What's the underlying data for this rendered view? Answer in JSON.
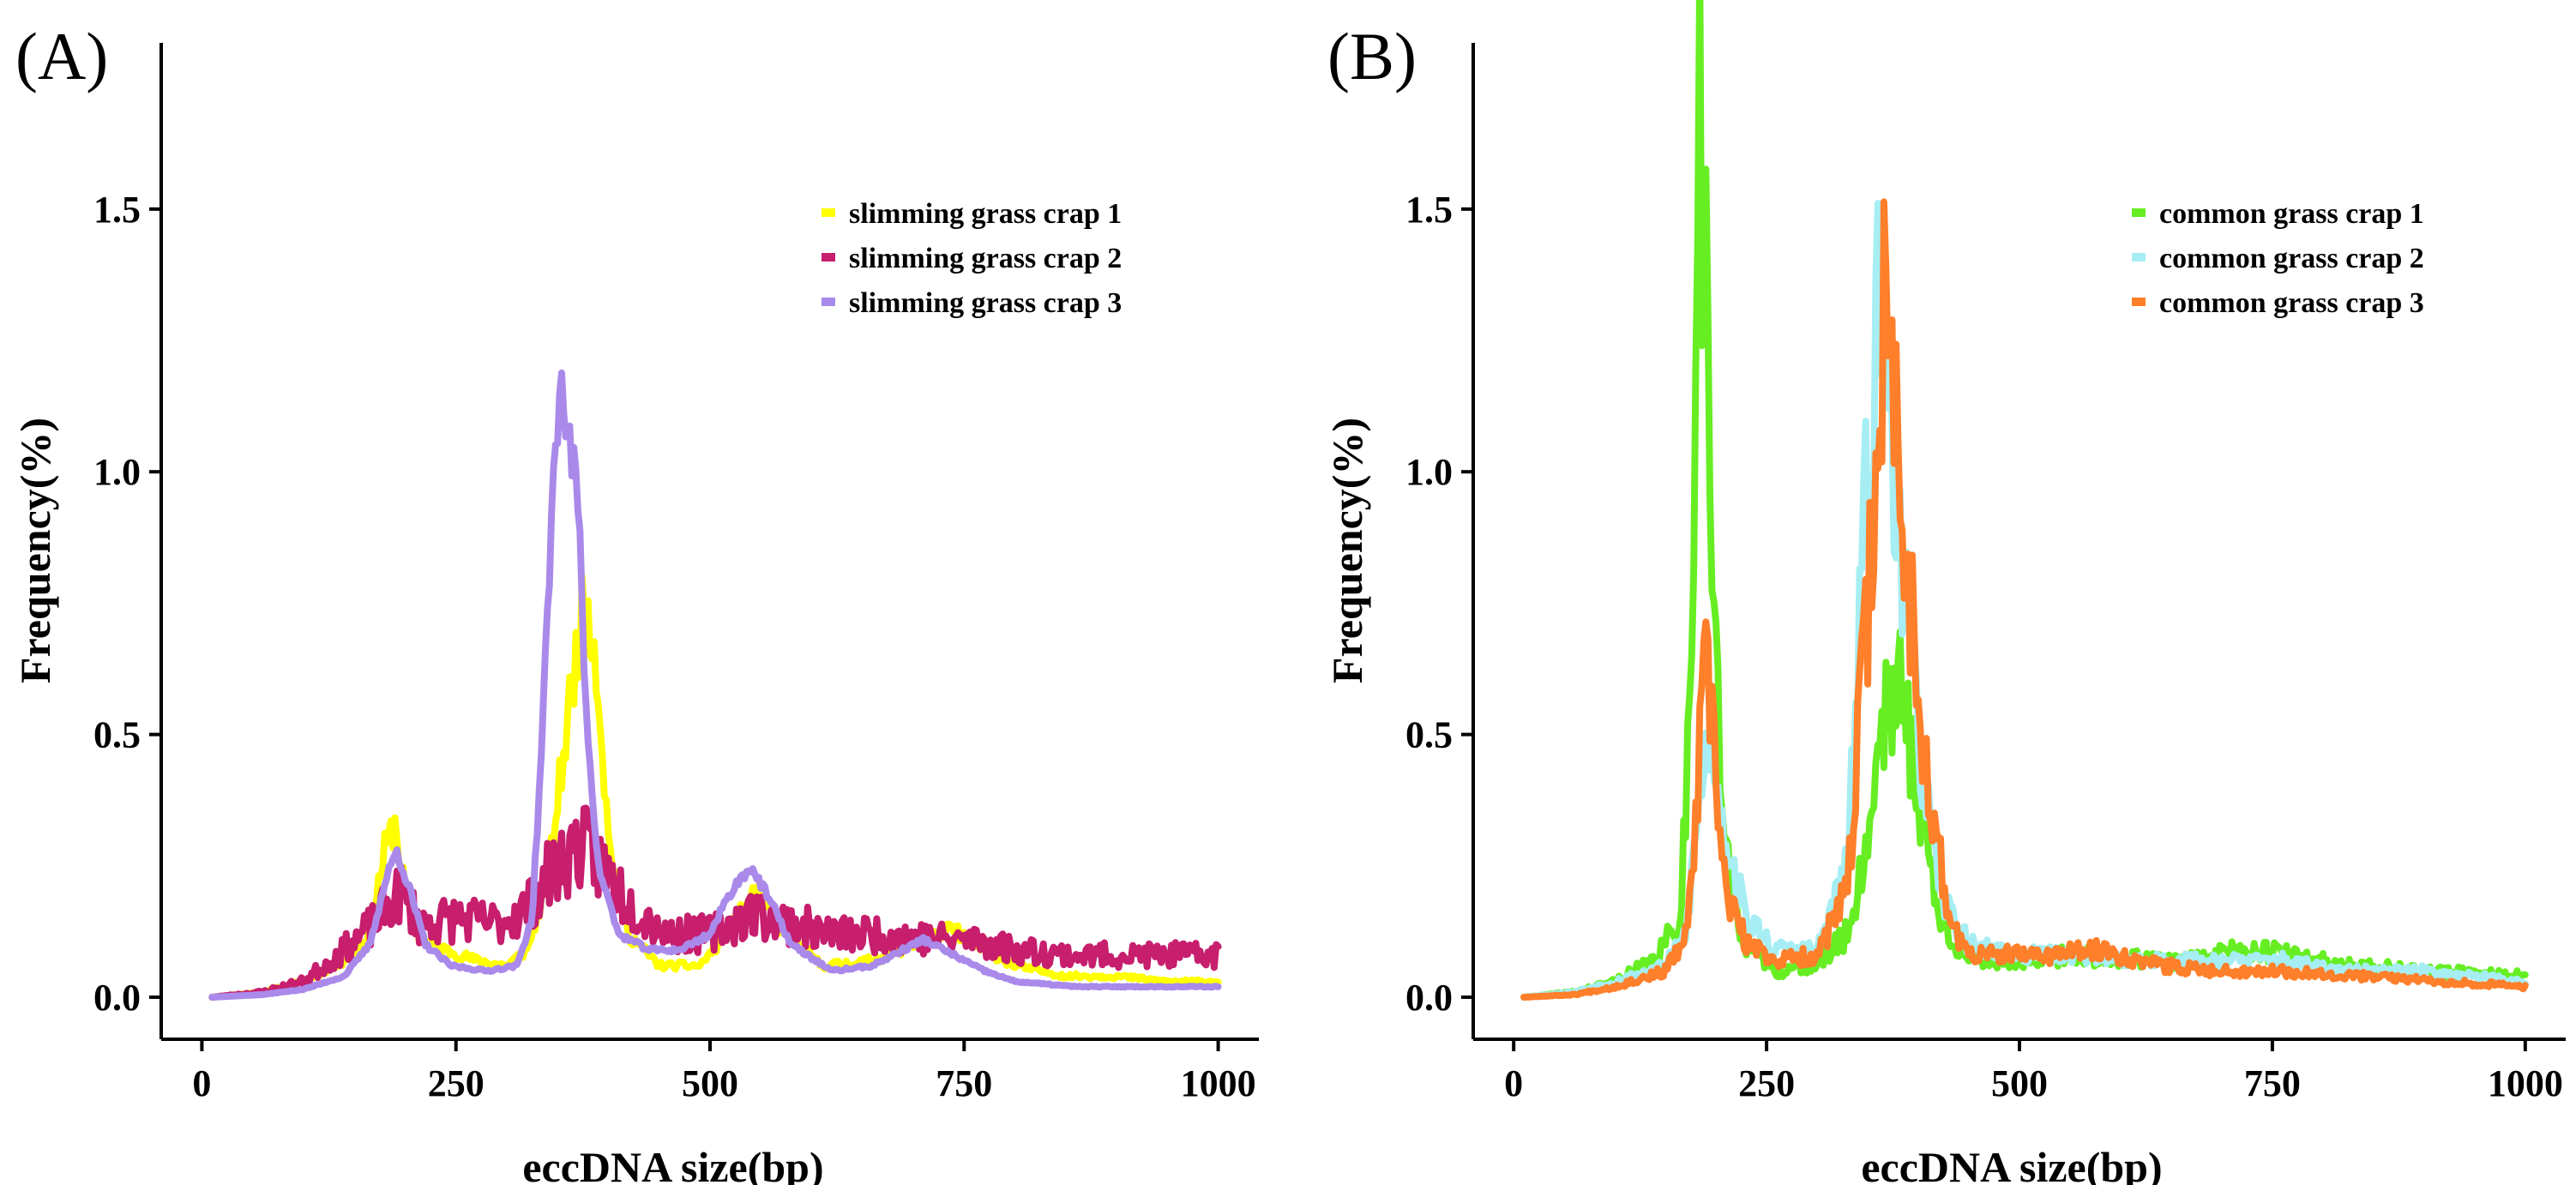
{
  "chart_data": [
    {
      "type": "line",
      "panel_label": "(A)",
      "xlabel": "eccDNA size(bp)",
      "ylabel": "Frequency(%)",
      "xlim": [
        -40,
        1040
      ],
      "ylim": [
        -0.08,
        1.8
      ],
      "xticks": [
        0,
        250,
        500,
        750,
        1000
      ],
      "xtick_labels": [
        "0",
        "250",
        "500",
        "750",
        "1000"
      ],
      "yticks": [
        0.0,
        0.5,
        1.0,
        1.5
      ],
      "ytick_labels": [
        "0.0",
        "0.5",
        "1.0",
        "1.5"
      ],
      "legend_position": "top-right",
      "grid": false,
      "series": [
        {
          "name": "slimming grass crap 1",
          "color": "#FFFF00",
          "noise": 0.12,
          "seed": 11,
          "points": [
            [
              10,
              0
            ],
            [
              60,
              0.01
            ],
            [
              100,
              0.03
            ],
            [
              140,
              0.07
            ],
            [
              165,
              0.12
            ],
            [
              180,
              0.28
            ],
            [
              190,
              0.33
            ],
            [
              200,
              0.2
            ],
            [
              215,
              0.11
            ],
            [
              240,
              0.09
            ],
            [
              270,
              0.07
            ],
            [
              300,
              0.06
            ],
            [
              320,
              0.09
            ],
            [
              340,
              0.22
            ],
            [
              355,
              0.45
            ],
            [
              370,
              0.68
            ],
            [
              380,
              0.77
            ],
            [
              390,
              0.6
            ],
            [
              400,
              0.3
            ],
            [
              420,
              0.12
            ],
            [
              450,
              0.06
            ],
            [
              490,
              0.06
            ],
            [
              520,
              0.13
            ],
            [
              545,
              0.2
            ],
            [
              570,
              0.13
            ],
            [
              610,
              0.06
            ],
            [
              660,
              0.07
            ],
            [
              700,
              0.1
            ],
            [
              740,
              0.13
            ],
            [
              760,
              0.1
            ],
            [
              800,
              0.06
            ],
            [
              850,
              0.04
            ],
            [
              900,
              0.04
            ],
            [
              950,
              0.03
            ],
            [
              1000,
              0.03
            ]
          ]
        },
        {
          "name": "slimming grass crap 2",
          "color": "#C71E6E",
          "noise": 0.3,
          "seed": 23,
          "points": [
            [
              10,
              0
            ],
            [
              60,
              0.01
            ],
            [
              100,
              0.03
            ],
            [
              140,
              0.09
            ],
            [
              170,
              0.14
            ],
            [
              195,
              0.2
            ],
            [
              215,
              0.14
            ],
            [
              250,
              0.15
            ],
            [
              290,
              0.14
            ],
            [
              320,
              0.17
            ],
            [
              345,
              0.24
            ],
            [
              370,
              0.29
            ],
            [
              390,
              0.26
            ],
            [
              420,
              0.18
            ],
            [
              460,
              0.12
            ],
            [
              500,
              0.12
            ],
            [
              540,
              0.16
            ],
            [
              580,
              0.14
            ],
            [
              620,
              0.12
            ],
            [
              680,
              0.12
            ],
            [
              720,
              0.11
            ],
            [
              760,
              0.11
            ],
            [
              800,
              0.09
            ],
            [
              860,
              0.08
            ],
            [
              920,
              0.08
            ],
            [
              1000,
              0.08
            ]
          ]
        },
        {
          "name": "slimming grass crap 3",
          "color": "#A98AEA",
          "noise": 0.05,
          "seed": 37,
          "points": [
            [
              10,
              0
            ],
            [
              60,
              0.005
            ],
            [
              100,
              0.015
            ],
            [
              140,
              0.04
            ],
            [
              165,
              0.1
            ],
            [
              182,
              0.23
            ],
            [
              192,
              0.28
            ],
            [
              205,
              0.2
            ],
            [
              220,
              0.1
            ],
            [
              245,
              0.06
            ],
            [
              280,
              0.05
            ],
            [
              310,
              0.06
            ],
            [
              325,
              0.15
            ],
            [
              335,
              0.5
            ],
            [
              345,
              0.95
            ],
            [
              352,
              1.17
            ],
            [
              360,
              1.08
            ],
            [
              370,
              0.95
            ],
            [
              378,
              0.55
            ],
            [
              390,
              0.25
            ],
            [
              410,
              0.12
            ],
            [
              440,
              0.09
            ],
            [
              470,
              0.09
            ],
            [
              500,
              0.12
            ],
            [
              520,
              0.2
            ],
            [
              540,
              0.25
            ],
            [
              560,
              0.18
            ],
            [
              580,
              0.1
            ],
            [
              620,
              0.05
            ],
            [
              660,
              0.06
            ],
            [
              690,
              0.09
            ],
            [
              710,
              0.11
            ],
            [
              740,
              0.08
            ],
            [
              770,
              0.05
            ],
            [
              800,
              0.03
            ],
            [
              860,
              0.02
            ],
            [
              920,
              0.02
            ],
            [
              1000,
              0.02
            ]
          ]
        }
      ]
    },
    {
      "type": "line",
      "panel_label": "(B)",
      "xlabel": "eccDNA size(bp)",
      "ylabel": "Frequency(%)",
      "xlim": [
        -40,
        1040
      ],
      "ylim": [
        -0.08,
        1.8
      ],
      "xticks": [
        0,
        250,
        500,
        750,
        1000
      ],
      "xtick_labels": [
        "0",
        "250",
        "500",
        "750",
        "1000"
      ],
      "yticks": [
        0.0,
        0.5,
        1.0,
        1.5
      ],
      "ytick_labels": [
        "0.0",
        "0.5",
        "1.0",
        "1.5"
      ],
      "legend_position": "top-right",
      "grid": false,
      "series": [
        {
          "name": "common grass crap 1",
          "color": "#66EE22",
          "noise": 0.25,
          "seed": 41,
          "points": [
            [
              10,
              0
            ],
            [
              60,
              0.01
            ],
            [
              100,
              0.03
            ],
            [
              140,
              0.07
            ],
            [
              165,
              0.15
            ],
            [
              175,
              0.6
            ],
            [
              180,
              1.4
            ],
            [
              184,
              1.71
            ],
            [
              188,
              1.5
            ],
            [
              193,
              1.1
            ],
            [
              200,
              0.6
            ],
            [
              210,
              0.25
            ],
            [
              230,
              0.1
            ],
            [
              260,
              0.05
            ],
            [
              300,
              0.06
            ],
            [
              330,
              0.12
            ],
            [
              350,
              0.3
            ],
            [
              365,
              0.55
            ],
            [
              375,
              0.6
            ],
            [
              385,
              0.55
            ],
            [
              400,
              0.4
            ],
            [
              420,
              0.15
            ],
            [
              450,
              0.07
            ],
            [
              500,
              0.07
            ],
            [
              560,
              0.08
            ],
            [
              620,
              0.07
            ],
            [
              680,
              0.07
            ],
            [
              720,
              0.1
            ],
            [
              760,
              0.08
            ],
            [
              820,
              0.06
            ],
            [
              900,
              0.05
            ],
            [
              1000,
              0.04
            ]
          ]
        },
        {
          "name": "common grass crap 2",
          "color": "#A6EEF4",
          "noise": 0.2,
          "seed": 53,
          "points": [
            [
              10,
              0
            ],
            [
              60,
              0.01
            ],
            [
              100,
              0.03
            ],
            [
              150,
              0.06
            ],
            [
              170,
              0.12
            ],
            [
              185,
              0.4
            ],
            [
              195,
              0.52
            ],
            [
              210,
              0.3
            ],
            [
              230,
              0.15
            ],
            [
              260,
              0.09
            ],
            [
              300,
              0.09
            ],
            [
              330,
              0.25
            ],
            [
              345,
              0.8
            ],
            [
              355,
              1.2
            ],
            [
              362,
              1.33
            ],
            [
              372,
              1.15
            ],
            [
              385,
              0.8
            ],
            [
              400,
              0.5
            ],
            [
              420,
              0.2
            ],
            [
              450,
              0.1
            ],
            [
              500,
              0.08
            ],
            [
              560,
              0.08
            ],
            [
              620,
              0.07
            ],
            [
              680,
              0.07
            ],
            [
              760,
              0.07
            ],
            [
              820,
              0.05
            ],
            [
              900,
              0.05
            ],
            [
              1000,
              0.03
            ]
          ]
        },
        {
          "name": "common grass crap 3",
          "color": "#FF7F2A",
          "noise": 0.22,
          "seed": 67,
          "points": [
            [
              10,
              0
            ],
            [
              60,
              0.005
            ],
            [
              100,
              0.02
            ],
            [
              150,
              0.05
            ],
            [
              172,
              0.12
            ],
            [
              182,
              0.4
            ],
            [
              190,
              0.64
            ],
            [
              198,
              0.45
            ],
            [
              210,
              0.2
            ],
            [
              230,
              0.1
            ],
            [
              260,
              0.07
            ],
            [
              300,
              0.08
            ],
            [
              330,
              0.2
            ],
            [
              345,
              0.6
            ],
            [
              358,
              1.0
            ],
            [
              365,
              1.28
            ],
            [
              375,
              1.2
            ],
            [
              385,
              0.9
            ],
            [
              395,
              0.7
            ],
            [
              410,
              0.4
            ],
            [
              430,
              0.15
            ],
            [
              450,
              0.08
            ],
            [
              520,
              0.08
            ],
            [
              580,
              0.09
            ],
            [
              640,
              0.06
            ],
            [
              700,
              0.05
            ],
            [
              760,
              0.05
            ],
            [
              840,
              0.04
            ],
            [
              920,
              0.03
            ],
            [
              1000,
              0.02
            ]
          ]
        }
      ]
    }
  ]
}
